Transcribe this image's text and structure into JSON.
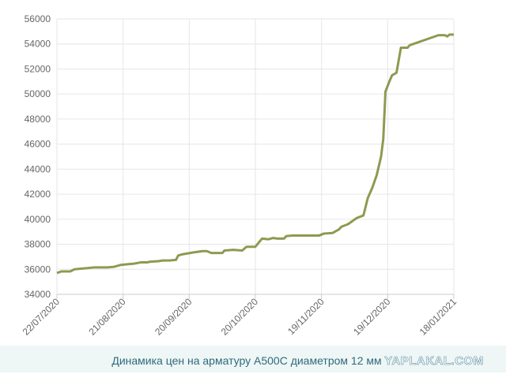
{
  "chart_data": {
    "type": "line",
    "color": "#8c9b50",
    "grid": true,
    "caption": "Динамика цен на арматуру А500С диаметром 12 мм",
    "watermark": "YAPLAKAL.COM",
    "x": [
      "2020-07-22",
      "2020-07-24",
      "2020-07-28",
      "2020-07-30",
      "2020-08-05",
      "2020-08-08",
      "2020-08-14",
      "2020-08-17",
      "2020-08-20",
      "2020-08-23",
      "2020-08-26",
      "2020-08-29",
      "2020-09-01",
      "2020-09-02",
      "2020-09-06",
      "2020-09-08",
      "2020-09-11",
      "2020-09-14",
      "2020-09-15",
      "2020-09-17",
      "2020-09-22",
      "2020-09-26",
      "2020-09-28",
      "2020-09-30",
      "2020-10-05",
      "2020-10-06",
      "2020-10-10",
      "2020-10-14",
      "2020-10-16",
      "2020-10-20",
      "2020-10-23",
      "2020-10-26",
      "2020-10-28",
      "2020-10-30",
      "2020-11-02",
      "2020-11-03",
      "2020-11-06",
      "2020-11-10",
      "2020-11-18",
      "2020-11-20",
      "2020-11-24",
      "2020-11-27",
      "2020-11-28",
      "2020-12-01",
      "2020-12-05",
      "2020-12-08",
      "2020-12-10",
      "2020-12-12",
      "2020-12-14",
      "2020-12-16",
      "2020-12-17",
      "2020-12-18",
      "2020-12-20",
      "2020-12-21",
      "2020-12-23",
      "2020-12-25",
      "2020-12-28",
      "2020-12-29",
      "2021-01-11",
      "2021-01-14",
      "2021-01-15",
      "2021-01-16",
      "2021-01-18"
    ],
    "values": [
      35700,
      35830,
      35830,
      36000,
      36100,
      36150,
      36150,
      36200,
      36350,
      36400,
      36450,
      36550,
      36550,
      36600,
      36650,
      36700,
      36700,
      36750,
      37100,
      37200,
      37350,
      37450,
      37450,
      37300,
      37300,
      37500,
      37550,
      37500,
      37800,
      37800,
      38450,
      38400,
      38500,
      38450,
      38450,
      38650,
      38700,
      38700,
      38700,
      38850,
      38900,
      39200,
      39400,
      39600,
      40100,
      40300,
      41700,
      42500,
      43500,
      45000,
      46400,
      50200,
      51100,
      51500,
      51700,
      53700,
      53700,
      53900,
      54700,
      54700,
      54600,
      54750,
      54750
    ],
    "xlim": [
      "2020-07-22",
      "2021-01-18"
    ],
    "xticks": [
      {
        "value": "2020-07-22",
        "label": "22/07/2020"
      },
      {
        "value": "2020-08-21",
        "label": "21/08/2020"
      },
      {
        "value": "2020-09-20",
        "label": "20/09/2020"
      },
      {
        "value": "2020-10-20",
        "label": "20/10/2020"
      },
      {
        "value": "2020-11-19",
        "label": "19/11/2020"
      },
      {
        "value": "2020-12-19",
        "label": "19/12/2020"
      },
      {
        "value": "2021-01-18",
        "label": "18/01/2021"
      }
    ],
    "ylim": [
      34000,
      56000
    ],
    "yticks": [
      34000,
      36000,
      38000,
      40000,
      42000,
      44000,
      46000,
      48000,
      50000,
      52000,
      54000,
      56000
    ]
  }
}
